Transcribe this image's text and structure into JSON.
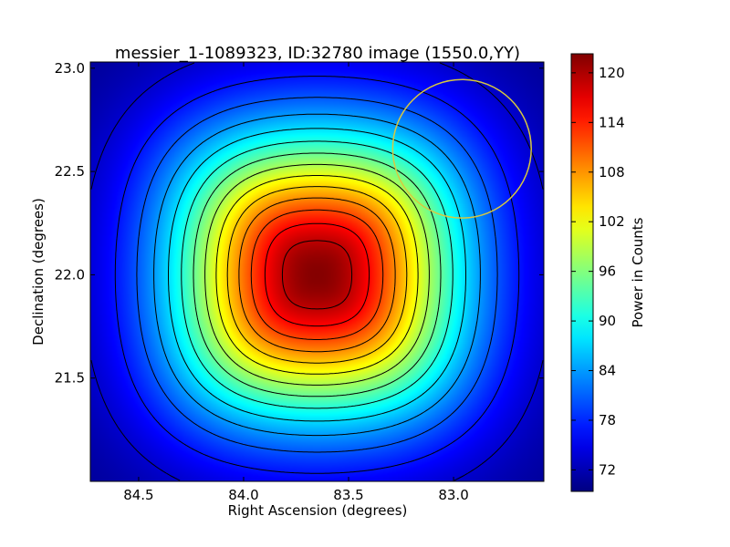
{
  "chart_data": {
    "type": "heatmap",
    "title": "messier_1-1089323, ID:32780 image (1550.0,YY)",
    "xlabel": "Right Ascension (degrees)",
    "ylabel": "Declination (degrees)",
    "colorbar_label": "Power in Counts",
    "colormap": "jet",
    "xlim": [
      84.73,
      82.57
    ],
    "ylim": [
      21.0,
      23.03
    ],
    "x_inverted": true,
    "xticks": [
      84.5,
      84.0,
      83.5,
      83.0
    ],
    "xtick_labels": [
      "84.5",
      "84.0",
      "83.5",
      "83.0"
    ],
    "yticks": [
      21.5,
      22.0,
      22.5,
      23.0
    ],
    "ytick_labels": [
      "21.5",
      "22.0",
      "22.5",
      "23.0"
    ],
    "clim": [
      69.4,
      122.3
    ],
    "cbar_ticks": [
      72,
      78,
      84,
      90,
      96,
      102,
      108,
      114,
      120
    ],
    "cbar_tick_labels": [
      "72",
      "78",
      "84",
      "90",
      "96",
      "102",
      "108",
      "114",
      "120"
    ],
    "peak": {
      "ra": 83.65,
      "dec": 22.0,
      "value": 122
    },
    "background_level": 70,
    "contour_step": 3.5,
    "beam_circle": {
      "ra": 82.96,
      "dec": 22.61,
      "radius_deg": 0.33,
      "color": "#d8c840"
    },
    "grid": false,
    "legend": "none"
  }
}
